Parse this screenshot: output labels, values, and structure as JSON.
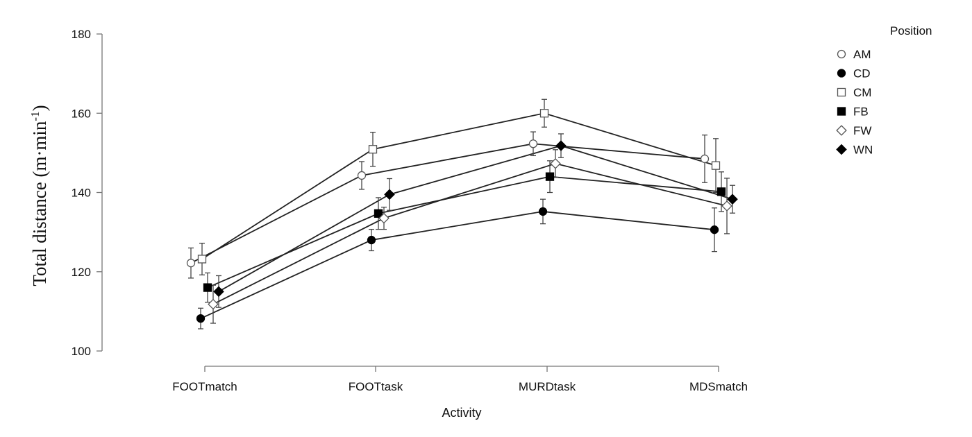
{
  "chart_data": {
    "type": "line",
    "xlabel": "Activity",
    "ylabel_main": "Total distance (m·min",
    "ylabel_sup": "-1",
    "ylabel_close": ")",
    "categories": [
      "FOOTmatch",
      "FOOTtask",
      "MURDtask",
      "MDSmatch"
    ],
    "ylim": [
      100,
      180
    ],
    "yticks": [
      100,
      120,
      140,
      160,
      180
    ],
    "grid": false,
    "legend_title": "Position",
    "legend_position": "top-right",
    "series": [
      {
        "name": "AM",
        "marker": "circle-open",
        "values": [
          122.2,
          144.3,
          152.3,
          148.5
        ],
        "errors": [
          3.8,
          3.5,
          3.0,
          6.0
        ]
      },
      {
        "name": "CD",
        "marker": "circle-filled",
        "values": [
          108.2,
          128.0,
          135.2,
          130.6
        ],
        "errors": [
          2.6,
          2.7,
          3.1,
          5.5
        ]
      },
      {
        "name": "CM",
        "marker": "square-open",
        "values": [
          123.2,
          150.9,
          160.0,
          146.8
        ],
        "errors": [
          4.0,
          4.3,
          3.5,
          6.8
        ]
      },
      {
        "name": "FB",
        "marker": "square-filled",
        "values": [
          116.0,
          134.7,
          144.0,
          140.2
        ],
        "errors": [
          3.7,
          4.0,
          4.0,
          5.0
        ]
      },
      {
        "name": "FW",
        "marker": "diamond-open",
        "values": [
          111.8,
          133.5,
          147.3,
          136.6
        ],
        "errors": [
          4.8,
          2.8,
          3.5,
          7.0
        ]
      },
      {
        "name": "WN",
        "marker": "diamond-filled",
        "values": [
          115.0,
          139.5,
          151.8,
          138.3
        ],
        "errors": [
          4.0,
          4.0,
          3.0,
          3.5
        ]
      }
    ]
  }
}
